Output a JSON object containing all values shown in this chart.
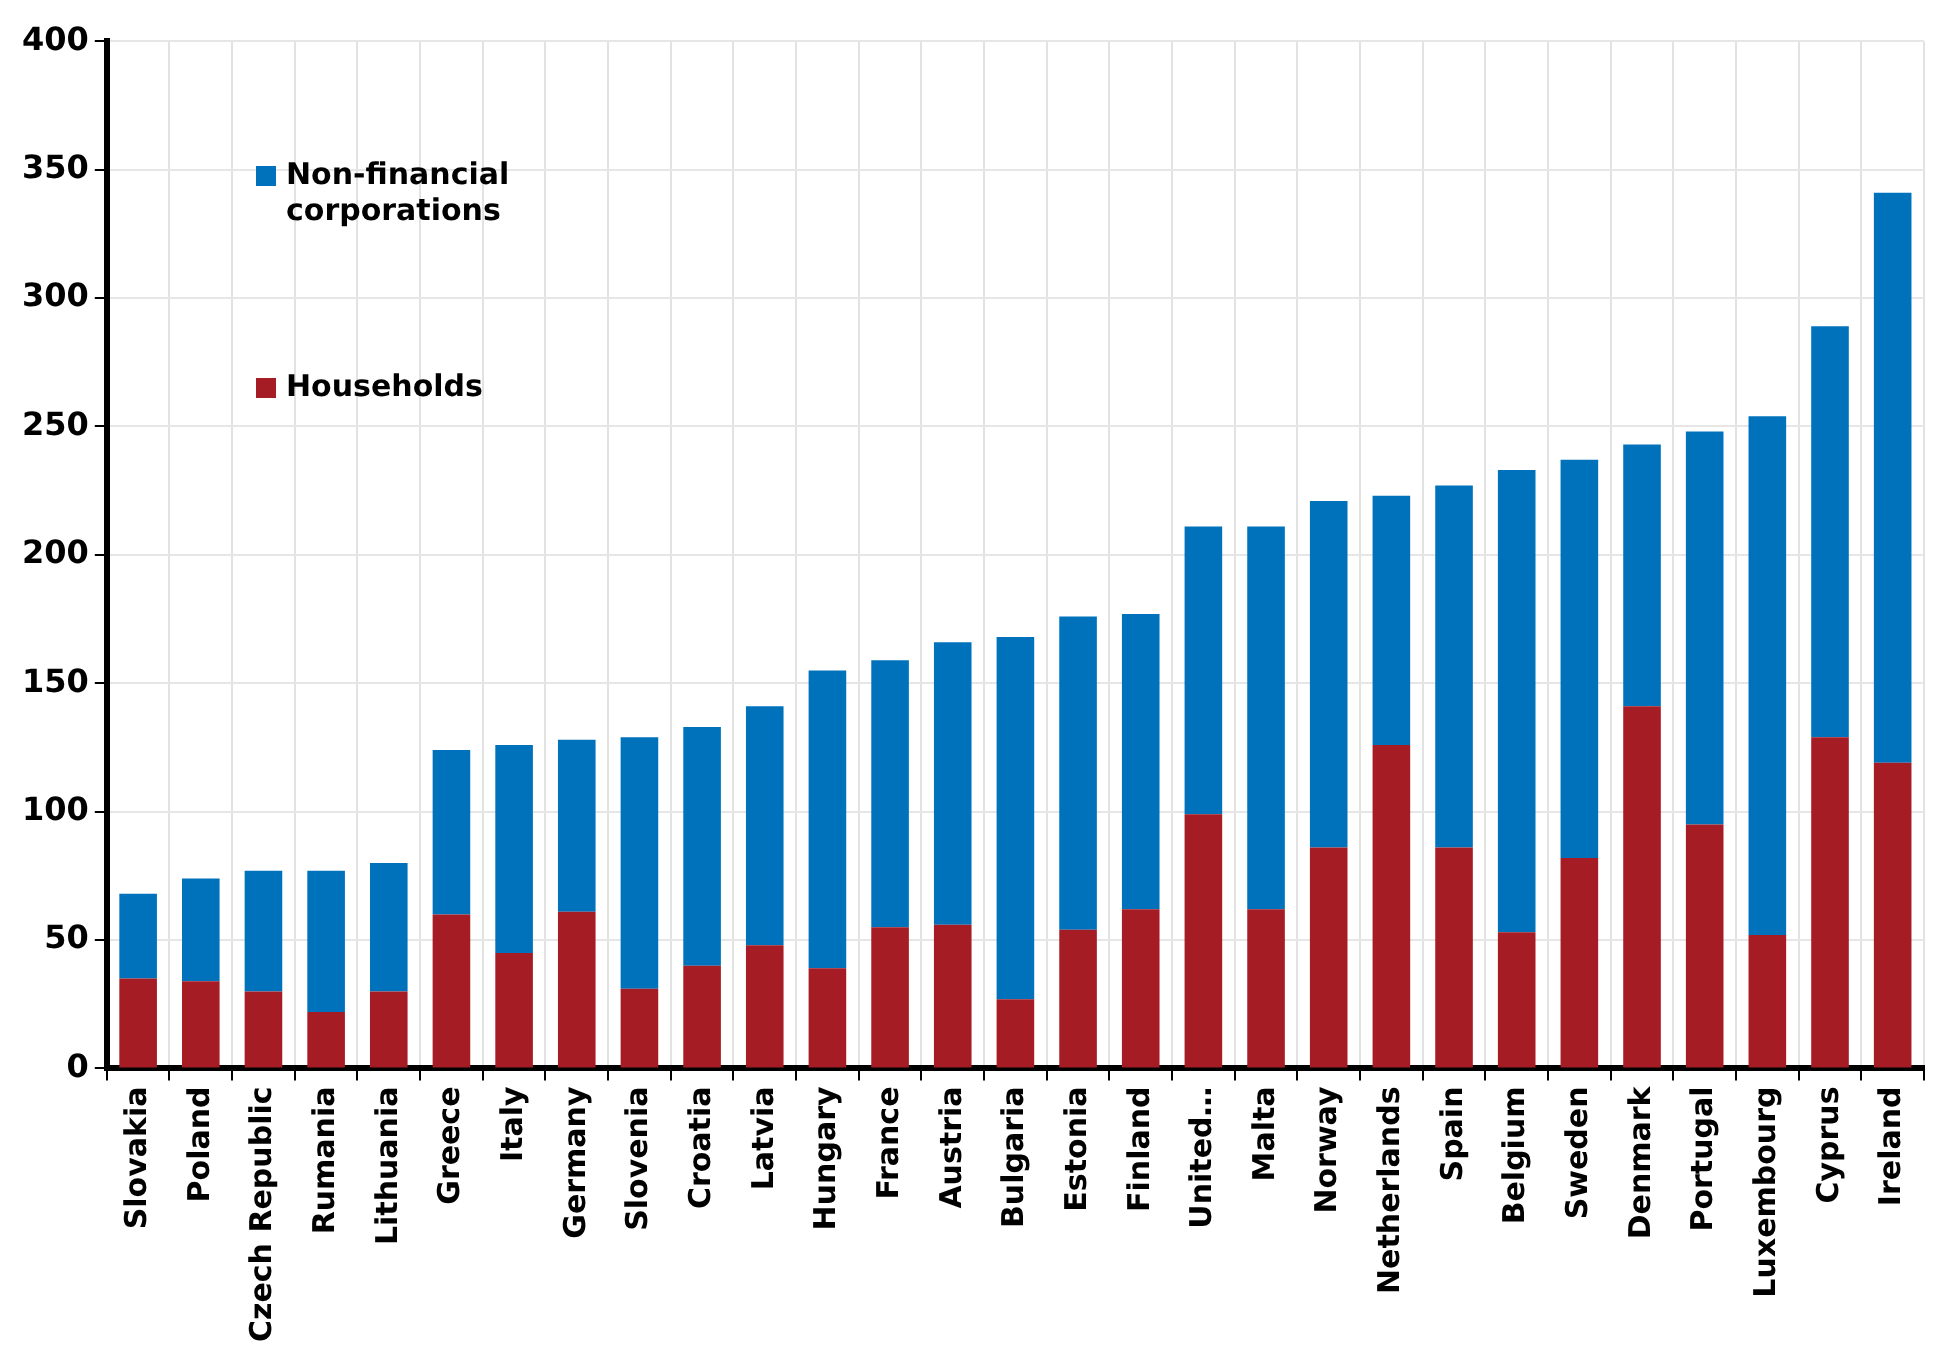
{
  "chart_data": {
    "type": "bar",
    "stacked": true,
    "categories": [
      "Slovakia",
      "Poland",
      "Czech Republic",
      "Rumania",
      "Lithuania",
      "Greece",
      "Italy",
      "Germany",
      "Slovenia",
      "Croatia",
      "Latvia",
      "Hungary",
      "France",
      "Austria",
      "Bulgaria",
      "Estonia",
      "Finland",
      "United…",
      "Malta",
      "Norway",
      "Netherlands",
      "Spain",
      "Belgium",
      "Sweden",
      "Denmark",
      "Portugal",
      "Luxembourg",
      "Cyprus",
      "Ireland"
    ],
    "series": [
      {
        "name": "Households",
        "color": "#a51c24",
        "values": [
          35,
          34,
          30,
          22,
          30,
          60,
          45,
          61,
          31,
          40,
          48,
          39,
          55,
          56,
          27,
          54,
          62,
          99,
          62,
          86,
          126,
          86,
          53,
          82,
          141,
          95,
          52,
          129,
          119
        ]
      },
      {
        "name": "Non-financial corporations",
        "color": "#0072bb",
        "values": [
          33,
          40,
          47,
          55,
          50,
          64,
          81,
          67,
          98,
          93,
          93,
          116,
          104,
          110,
          141,
          122,
          115,
          112,
          149,
          135,
          97,
          141,
          180,
          155,
          102,
          153,
          202,
          160,
          222
        ]
      }
    ],
    "ylim": [
      0,
      400
    ],
    "yticks": [
      0,
      50,
      100,
      150,
      200,
      250,
      300,
      350,
      400
    ],
    "grid": true,
    "legend": "top left"
  }
}
